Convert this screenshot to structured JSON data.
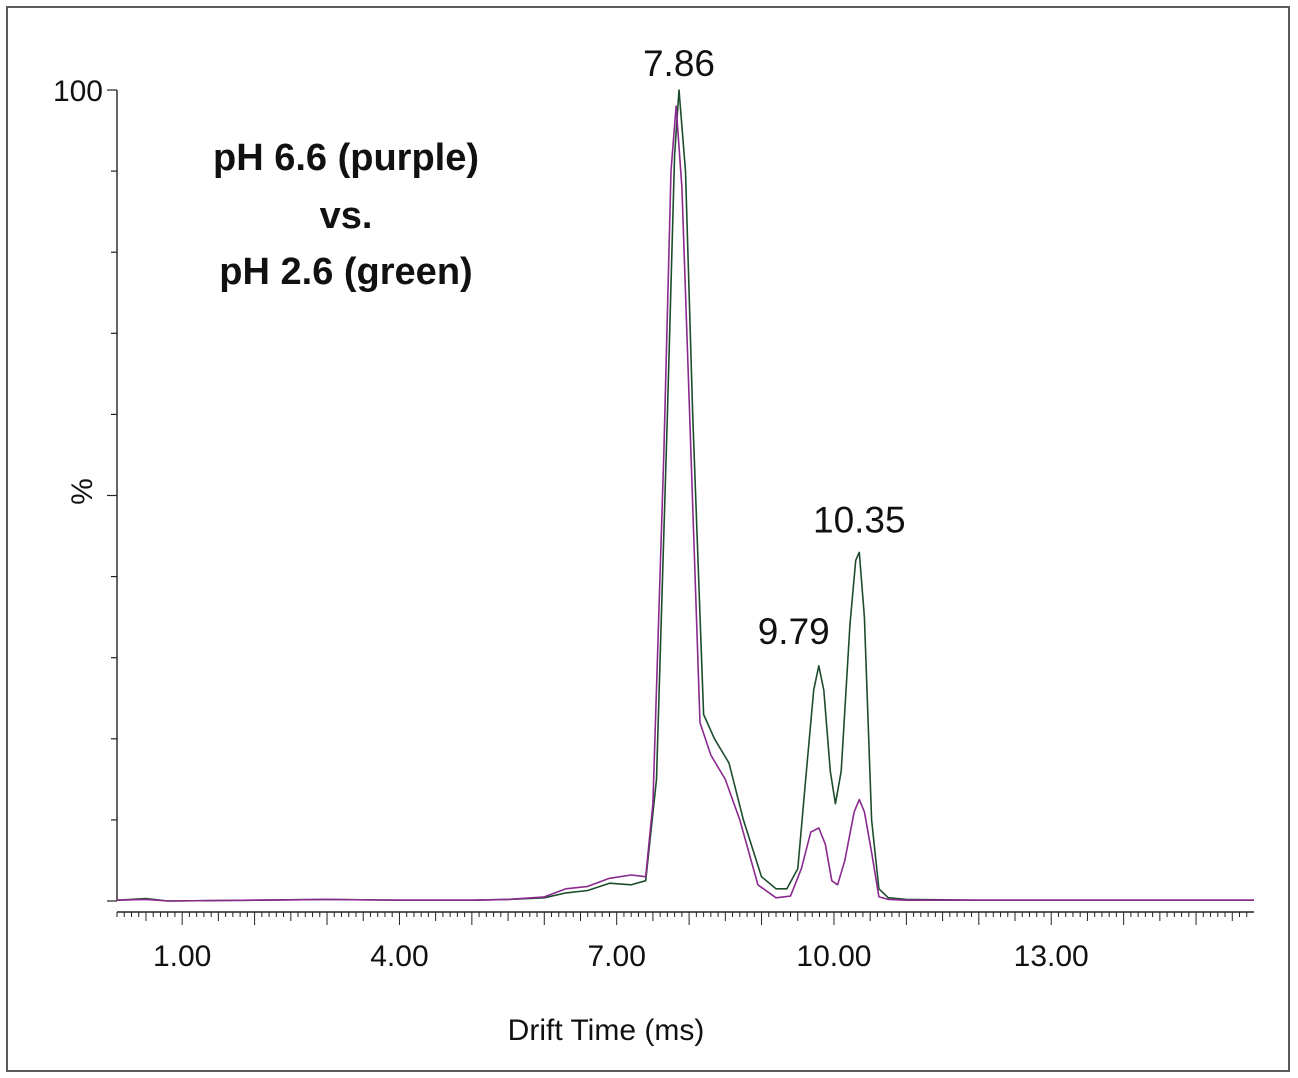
{
  "chart_data": {
    "type": "line",
    "legend_lines": [
      "pH  6.6 (purple)",
      "vs.",
      "pH 2.6 (green)"
    ],
    "xlabel": "Drift Time (ms)",
    "ylabel": "%",
    "xlim": [
      0.1,
      15.8
    ],
    "ylim": [
      0,
      100
    ],
    "x_ticks": [
      1.0,
      4.0,
      7.0,
      10.0,
      13.0
    ],
    "x_tick_labels": [
      "1.00",
      "4.00",
      "7.00",
      "10.00",
      "13.00"
    ],
    "y_ticks": [
      0,
      50,
      100
    ],
    "y_tick_labels": [
      "",
      "%",
      "100"
    ],
    "annotations": [
      {
        "text": "7.86",
        "x": 7.86,
        "y": 100
      },
      {
        "text": "9.79",
        "x": 9.79,
        "y": 29
      },
      {
        "text": "10.35",
        "x": 10.35,
        "y": 43
      }
    ],
    "series": [
      {
        "color": "#1e4d2e",
        "points": [
          [
            0.1,
            0.1
          ],
          [
            0.5,
            0.3
          ],
          [
            0.8,
            0.0
          ],
          [
            2.0,
            0.1
          ],
          [
            3.0,
            0.2
          ],
          [
            4.0,
            0.1
          ],
          [
            5.0,
            0.1
          ],
          [
            5.5,
            0.2
          ],
          [
            6.0,
            0.4
          ],
          [
            6.3,
            1.0
          ],
          [
            6.6,
            1.3
          ],
          [
            6.9,
            2.2
          ],
          [
            7.2,
            2.0
          ],
          [
            7.4,
            2.5
          ],
          [
            7.55,
            15
          ],
          [
            7.7,
            60
          ],
          [
            7.8,
            92
          ],
          [
            7.86,
            100
          ],
          [
            7.95,
            90
          ],
          [
            8.05,
            60
          ],
          [
            8.2,
            23
          ],
          [
            8.35,
            20
          ],
          [
            8.55,
            17
          ],
          [
            8.75,
            10
          ],
          [
            9.0,
            3
          ],
          [
            9.2,
            1.5
          ],
          [
            9.35,
            1.5
          ],
          [
            9.5,
            4
          ],
          [
            9.62,
            16
          ],
          [
            9.72,
            26
          ],
          [
            9.79,
            29
          ],
          [
            9.86,
            26
          ],
          [
            9.95,
            16
          ],
          [
            10.02,
            12
          ],
          [
            10.1,
            16
          ],
          [
            10.22,
            34
          ],
          [
            10.3,
            42
          ],
          [
            10.35,
            43
          ],
          [
            10.42,
            35
          ],
          [
            10.52,
            10
          ],
          [
            10.62,
            1.5
          ],
          [
            10.75,
            0.4
          ],
          [
            11.0,
            0.2
          ],
          [
            12.0,
            0.1
          ],
          [
            13.0,
            0.1
          ],
          [
            14.0,
            0.1
          ],
          [
            15.8,
            0.1
          ]
        ]
      },
      {
        "color": "#8a2a8e",
        "points": [
          [
            0.1,
            0.1
          ],
          [
            0.5,
            0.2
          ],
          [
            0.8,
            0.0
          ],
          [
            2.0,
            0.1
          ],
          [
            3.0,
            0.2
          ],
          [
            4.0,
            0.1
          ],
          [
            5.0,
            0.1
          ],
          [
            5.5,
            0.2
          ],
          [
            6.0,
            0.5
          ],
          [
            6.3,
            1.5
          ],
          [
            6.6,
            1.8
          ],
          [
            6.9,
            2.8
          ],
          [
            7.2,
            3.2
          ],
          [
            7.4,
            3.0
          ],
          [
            7.5,
            12
          ],
          [
            7.65,
            55
          ],
          [
            7.75,
            90
          ],
          [
            7.82,
            98
          ],
          [
            7.9,
            88
          ],
          [
            8.0,
            62
          ],
          [
            8.15,
            22
          ],
          [
            8.3,
            18
          ],
          [
            8.5,
            15
          ],
          [
            8.7,
            10
          ],
          [
            8.95,
            2.0
          ],
          [
            9.2,
            0.4
          ],
          [
            9.4,
            0.6
          ],
          [
            9.55,
            4
          ],
          [
            9.68,
            8.5
          ],
          [
            9.79,
            9
          ],
          [
            9.88,
            7
          ],
          [
            9.97,
            2.5
          ],
          [
            10.05,
            2.0
          ],
          [
            10.15,
            5
          ],
          [
            10.28,
            11
          ],
          [
            10.35,
            12.5
          ],
          [
            10.42,
            11
          ],
          [
            10.52,
            6
          ],
          [
            10.62,
            0.5
          ],
          [
            10.75,
            0.2
          ],
          [
            11.0,
            0.1
          ],
          [
            12.0,
            0.1
          ],
          [
            13.0,
            0.1
          ],
          [
            14.0,
            0.1
          ],
          [
            15.8,
            0.1
          ]
        ]
      }
    ]
  }
}
